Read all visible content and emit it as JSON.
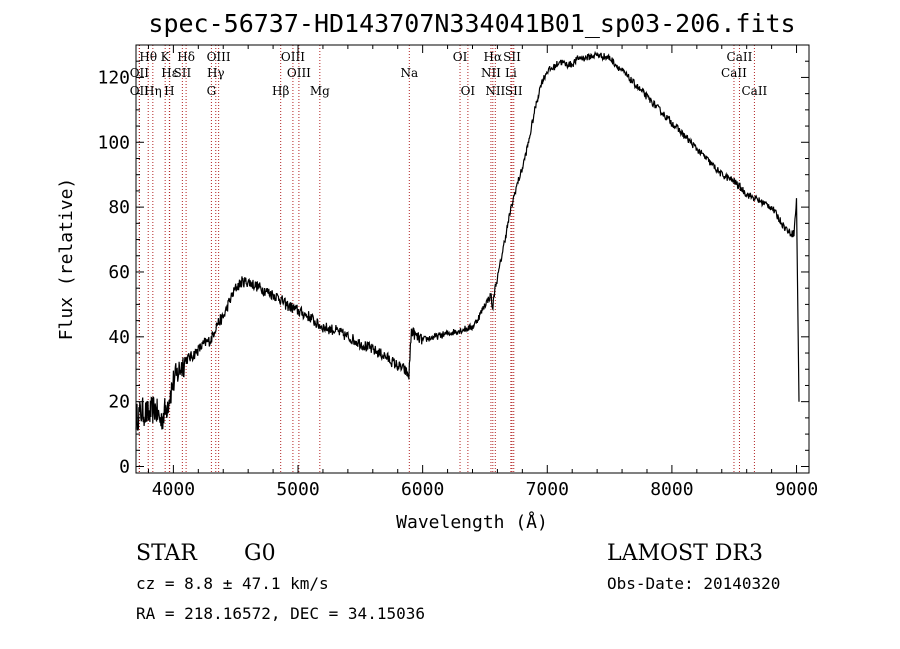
{
  "chart_data": {
    "type": "line",
    "title": "spec-56737-HD143707N334041B01_sp03-206.fits",
    "xlabel": "Wavelength (Å)",
    "ylabel": "Flux (relative)",
    "xlim": [
      3700,
      9100
    ],
    "ylim": [
      -2,
      130
    ],
    "xticks": [
      4000,
      5000,
      6000,
      7000,
      8000,
      9000
    ],
    "yticks": [
      0,
      20,
      40,
      60,
      80,
      100,
      120
    ],
    "series": [
      {
        "name": "spectrum",
        "x": [
          3700,
          3750,
          3800,
          3850,
          3900,
          3950,
          4000,
          4050,
          4100,
          4150,
          4200,
          4250,
          4300,
          4350,
          4400,
          4450,
          4500,
          4550,
          4600,
          4650,
          4700,
          4750,
          4800,
          4850,
          4900,
          4950,
          5000,
          5050,
          5100,
          5150,
          5200,
          5300,
          5400,
          5500,
          5600,
          5700,
          5800,
          5850,
          5890,
          5910,
          5950,
          6000,
          6100,
          6200,
          6300,
          6400,
          6450,
          6500,
          6550,
          6560,
          6580,
          6600,
          6650,
          6700,
          6750,
          6800,
          6850,
          6900,
          6950,
          7000,
          7050,
          7100,
          7150,
          7200,
          7250,
          7300,
          7400,
          7500,
          7600,
          7700,
          7800,
          7900,
          8000,
          8100,
          8200,
          8300,
          8400,
          8500,
          8550,
          8600,
          8700,
          8800,
          8850,
          8900,
          8950,
          8980,
          9000,
          9020
        ],
        "y": [
          15,
          17,
          16,
          18,
          14,
          19,
          26,
          30,
          33,
          34,
          36,
          38,
          39,
          44,
          46,
          51,
          55,
          57,
          57,
          56,
          55,
          54,
          53,
          52,
          50,
          49,
          48,
          47,
          46,
          44,
          43,
          42,
          40,
          38,
          36,
          34,
          31,
          30,
          28,
          42,
          40,
          39,
          40,
          41,
          42,
          43,
          46,
          50,
          53,
          48,
          55,
          58,
          68,
          78,
          86,
          92,
          100,
          110,
          118,
          122,
          123,
          125,
          124,
          124,
          126,
          126,
          127,
          126,
          122,
          118,
          114,
          110,
          106,
          102,
          98,
          94,
          90,
          88,
          86,
          84,
          82,
          80,
          77,
          74,
          72,
          72,
          82,
          20
        ]
      }
    ],
    "emission_lines": [
      {
        "label": "Hθ",
        "x": 3798,
        "row": 1
      },
      {
        "label": "OII",
        "x": 3727,
        "row": 2
      },
      {
        "label": "OII",
        "x": 3727,
        "row": 3
      },
      {
        "label": "K",
        "x": 3934,
        "row": 1
      },
      {
        "label": "Hε",
        "x": 3970,
        "row": 2
      },
      {
        "label": "Hη",
        "x": 3835,
        "row": 3
      },
      {
        "label": "Hδ",
        "x": 4102,
        "row": 1
      },
      {
        "label": "SII",
        "x": 4072,
        "row": 2
      },
      {
        "label": "H",
        "x": 3968,
        "row": 3
      },
      {
        "label": "OIII",
        "x": 4363,
        "row": 1
      },
      {
        "label": "Hγ",
        "x": 4340,
        "row": 2
      },
      {
        "label": "G",
        "x": 4305,
        "row": 3
      },
      {
        "label": "Hβ",
        "x": 4861,
        "row": 3
      },
      {
        "label": "OIII",
        "x": 4959,
        "row": 1
      },
      {
        "label": "OIII",
        "x": 5007,
        "row": 2
      },
      {
        "label": "Mg",
        "x": 5175,
        "row": 3
      },
      {
        "label": "Na",
        "x": 5893,
        "row": 2
      },
      {
        "label": "OI",
        "x": 6300,
        "row": 1
      },
      {
        "label": "OI",
        "x": 6363,
        "row": 3
      },
      {
        "label": "Hα",
        "x": 6563,
        "row": 1
      },
      {
        "label": "NII",
        "x": 6548,
        "row": 2
      },
      {
        "label": "NII",
        "x": 6583,
        "row": 3
      },
      {
        "label": "SII",
        "x": 6717,
        "row": 1
      },
      {
        "label": "Li",
        "x": 6708,
        "row": 2
      },
      {
        "label": "SII",
        "x": 6731,
        "row": 3
      },
      {
        "label": "CaII",
        "x": 8542,
        "row": 1
      },
      {
        "label": "CaII",
        "x": 8498,
        "row": 2
      },
      {
        "label": "CaII",
        "x": 8662,
        "row": 3
      }
    ],
    "line_color": "#b22222"
  },
  "info": {
    "object_class": "STAR",
    "subclass": "G0",
    "survey": "LAMOST DR3",
    "redshift": "cz = 8.8 ± 47.1 km/s",
    "obs_date": "Obs-Date: 20140320",
    "coords": "RA = 218.16572, DEC =  34.15036"
  }
}
